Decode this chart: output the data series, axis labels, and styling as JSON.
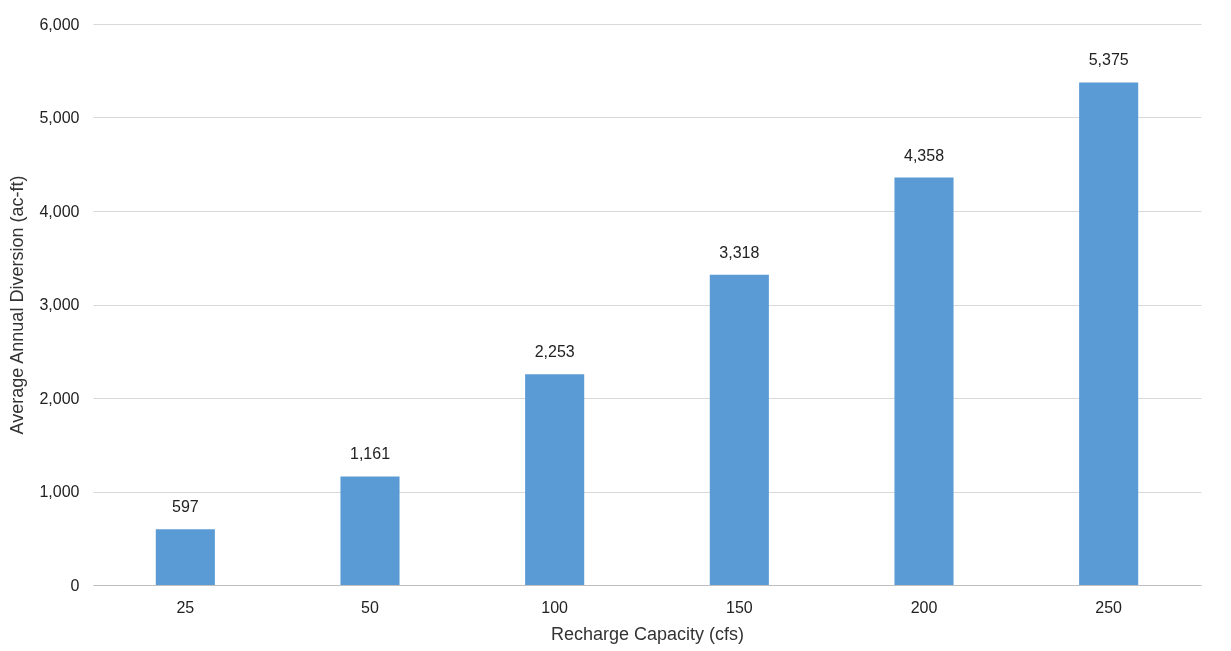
{
  "chart_data": {
    "type": "bar",
    "xlabel": "Recharge Capacity (cfs)",
    "ylabel": "Average Annual Diversion (ac-ft)",
    "categories": [
      "25",
      "50",
      "100",
      "150",
      "200",
      "250"
    ],
    "values": [
      597,
      1161,
      2253,
      3318,
      4358,
      5375
    ],
    "color": "#5b9bd5",
    "value_labels": [
      "597",
      "1,161",
      "2,253",
      "3,318",
      "4,358",
      "5,375"
    ],
    "ylim": [
      0,
      6000
    ],
    "yticks": [
      0,
      {
        "value": 1000,
        "label": "1,000"
      },
      {
        "value": 2000,
        "label": "2,000"
      },
      {
        "value": 3000,
        "label": "3,000"
      },
      {
        "value": 4000,
        "label": "4,000"
      },
      {
        "value": 5000,
        "label": "5,000"
      },
      {
        "value": 6000,
        "label": "6,000"
      }
    ],
    "grid": "y"
  }
}
